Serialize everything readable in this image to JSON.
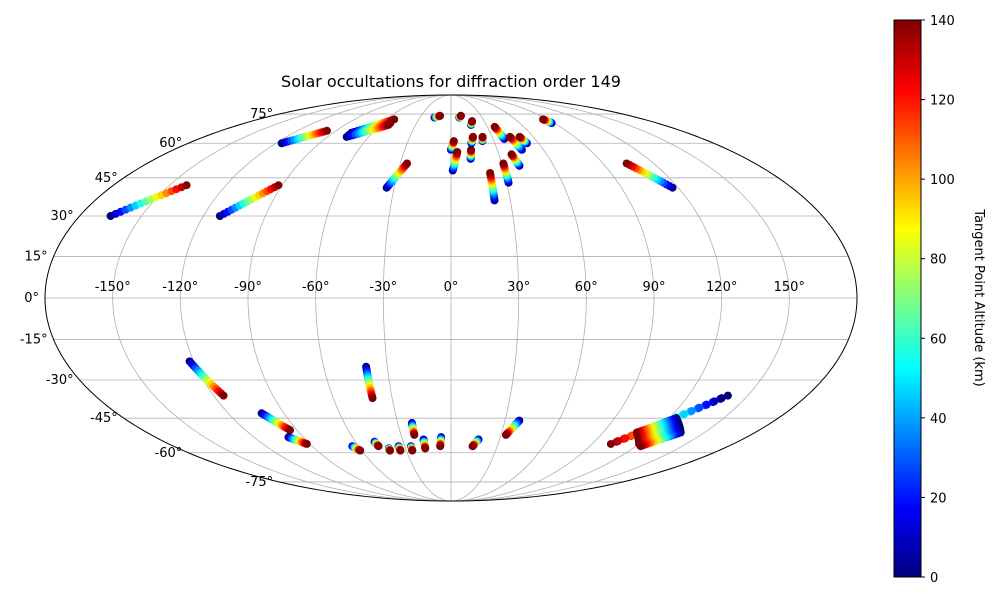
{
  "chart_data": {
    "type": "scatter",
    "projection": "mollweide",
    "title": "Solar occultations for diffraction order 149",
    "xlabel": "",
    "ylabel": "",
    "xlim": [
      -180,
      180
    ],
    "ylim": [
      -90,
      90
    ],
    "grid": true,
    "lon_ticks": [
      -150,
      -120,
      -90,
      -60,
      -30,
      0,
      30,
      60,
      90,
      120,
      150
    ],
    "lon_tick_labels": [
      "-150°",
      "-120°",
      "-90°",
      "-60°",
      "-30°",
      "0°",
      "30°",
      "60°",
      "90°",
      "120°",
      "150°"
    ],
    "lat_ticks": [
      -75,
      -60,
      -45,
      -30,
      -15,
      0,
      15,
      30,
      45,
      60,
      75
    ],
    "lat_tick_labels": [
      "-75°",
      "-60°",
      "-45°",
      "-30°",
      "-15°",
      "0°",
      "15°",
      "30°",
      "45°",
      "60°",
      "75°"
    ],
    "colorbar": {
      "label": "Tangent Point Altitude (km)",
      "range": [
        0,
        140
      ],
      "ticks": [
        0,
        20,
        40,
        60,
        80,
        100,
        120,
        140
      ],
      "tick_labels": [
        "0",
        "20",
        "40",
        "60",
        "80",
        "100",
        "120",
        "140"
      ],
      "colormap": "jet"
    },
    "tracks": [
      {
        "start": [
          -165,
          30
        ],
        "end": [
          -141,
          42
        ]
      },
      {
        "start": [
          -116,
          60
        ],
        "end": [
          -97,
          66
        ]
      },
      {
        "start": [
          -112,
          30
        ],
        "end": [
          -92,
          42
        ]
      },
      {
        "start": [
          -76,
          65
        ],
        "end": [
          -53,
          72
        ]
      },
      {
        "start": [
          -76,
          64
        ],
        "end": [
          -53,
          70
        ]
      },
      {
        "start": [
          -76,
          63
        ],
        "end": [
          -53,
          69
        ]
      },
      {
        "start": [
          -34,
          41
        ],
        "end": [
          -26,
          51
        ]
      },
      {
        "start": [
          -16,
          73
        ],
        "end": [
          -11,
          74
        ]
      },
      {
        "start": [
          0,
          57
        ],
        "end": [
          2,
          61
        ]
      },
      {
        "start": [
          1,
          48
        ],
        "end": [
          4,
          56
        ]
      },
      {
        "start": [
          8,
          73
        ],
        "end": [
          10,
          74
        ]
      },
      {
        "start": [
          12,
          53
        ],
        "end": [
          13,
          57
        ]
      },
      {
        "start": [
          14,
          60
        ],
        "end": [
          16,
          63
        ]
      },
      {
        "start": [
          17,
          69
        ],
        "end": [
          19,
          71
        ]
      },
      {
        "start": [
          22,
          61
        ],
        "end": [
          23,
          63
        ]
      },
      {
        "start": [
          22,
          36
        ],
        "end": [
          22,
          47
        ]
      },
      {
        "start": [
          31,
          43
        ],
        "end": [
          31,
          51
        ]
      },
      {
        "start": [
          38,
          62
        ],
        "end": [
          36,
          68
        ]
      },
      {
        "start": [
          40,
          50
        ],
        "end": [
          38,
          55
        ]
      },
      {
        "start": [
          46,
          57
        ],
        "end": [
          43,
          63
        ]
      },
      {
        "start": [
          52,
          60
        ],
        "end": [
          50,
          63
        ]
      },
      {
        "start": [
          88,
          70
        ],
        "end": [
          86,
          72
        ]
      },
      {
        "start": [
          117,
          41
        ],
        "end": [
          104,
          51
        ]
      },
      {
        "start": [
          -122,
          -23
        ],
        "end": [
          -115,
          -36
        ]
      },
      {
        "start": [
          -102,
          -43
        ],
        "end": [
          -94,
          -50
        ]
      },
      {
        "start": [
          -99,
          -53
        ],
        "end": [
          -92,
          -56
        ]
      },
      {
        "start": [
          -64,
          -57
        ],
        "end": [
          -61,
          -59
        ]
      },
      {
        "start": [
          -48,
          -55
        ],
        "end": [
          -47,
          -57
        ]
      },
      {
        "start": [
          -41,
          -58
        ],
        "end": [
          -41,
          -59
        ]
      },
      {
        "start": [
          -40,
          -25
        ],
        "end": [
          -40,
          -37
        ]
      },
      {
        "start": [
          -34,
          -57
        ],
        "end": [
          -34,
          -59
        ]
      },
      {
        "start": [
          -26,
          -57
        ],
        "end": [
          -26,
          -59
        ]
      },
      {
        "start": [
          -22,
          -47
        ],
        "end": [
          -22,
          -52
        ]
      },
      {
        "start": [
          -17,
          -54
        ],
        "end": [
          -17,
          -58
        ]
      },
      {
        "start": [
          -6,
          -53
        ],
        "end": [
          -7,
          -57
        ]
      },
      {
        "start": [
          17,
          -54
        ],
        "end": [
          14,
          -57
        ]
      },
      {
        "start": [
          38,
          -46
        ],
        "end": [
          33,
          -52
        ]
      },
      {
        "start": [
          140,
          -36
        ],
        "end": [
          104,
          -55
        ]
      },
      {
        "start": [
          138,
          -37
        ],
        "end": [
          102,
          -56
        ]
      },
      {
        "start": [
          124,
          -45
        ],
        "end": [
          110,
          -51
        ]
      },
      {
        "start": [
          126,
          -46
        ],
        "end": [
          112,
          -52
        ]
      },
      {
        "start": [
          128,
          -47
        ],
        "end": [
          114,
          -53
        ]
      },
      {
        "start": [
          130,
          -48
        ],
        "end": [
          116,
          -54
        ]
      },
      {
        "start": [
          132,
          -49
        ],
        "end": [
          118,
          -55
        ]
      },
      {
        "start": [
          134,
          -50
        ],
        "end": [
          120,
          -56
        ]
      },
      {
        "start": [
          136,
          -51
        ],
        "end": [
          123,
          -57
        ]
      }
    ]
  }
}
